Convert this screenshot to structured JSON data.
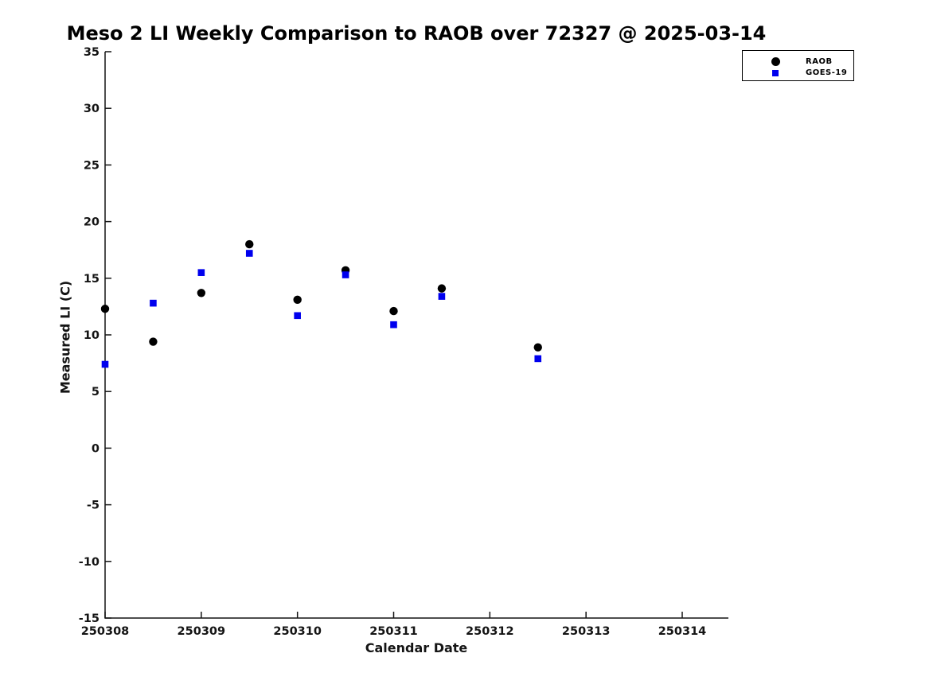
{
  "chart_data": {
    "type": "scatter",
    "title": "Meso 2 LI Weekly Comparison to RAOB over 72327 @ 2025-03-14",
    "xlabel": "Calendar Date",
    "ylabel": "Measured LI (C)",
    "xlim": [
      250308,
      250314.48
    ],
    "ylim": [
      -15,
      35
    ],
    "x_ticks": [
      250308,
      250309,
      250310,
      250311,
      250312,
      250313,
      250314
    ],
    "x_tick_labels": [
      "250308",
      "250309",
      "250310",
      "250311",
      "250312",
      "250313",
      "250314"
    ],
    "y_ticks": [
      -15,
      -10,
      -5,
      0,
      5,
      10,
      15,
      20,
      25,
      30,
      35
    ],
    "y_tick_labels": [
      "-15",
      "-10",
      "-5",
      "0",
      "5",
      "10",
      "15",
      "20",
      "25",
      "30",
      "35"
    ],
    "grid": false,
    "legend_position": "top-right-outside-axes",
    "series": [
      {
        "name": "RAOB",
        "marker": "circle",
        "color": "#000000",
        "x": [
          250308.0,
          250308.5,
          250309.0,
          250309.5,
          250310.0,
          250310.5,
          250311.0,
          250311.5,
          250312.5
        ],
        "y": [
          12.3,
          9.4,
          13.7,
          18.0,
          13.1,
          15.7,
          12.1,
          14.1,
          8.9
        ]
      },
      {
        "name": "GOES-19",
        "marker": "square",
        "color": "#0000ee",
        "x": [
          250308.0,
          250308.5,
          250309.0,
          250309.5,
          250310.0,
          250310.5,
          250311.0,
          250311.5,
          250312.5
        ],
        "y": [
          7.4,
          12.8,
          15.5,
          17.2,
          11.7,
          15.3,
          10.9,
          13.4,
          7.9
        ]
      }
    ]
  },
  "legend": {
    "entries": [
      {
        "label": "RAOB"
      },
      {
        "label": "GOES-19"
      }
    ]
  }
}
